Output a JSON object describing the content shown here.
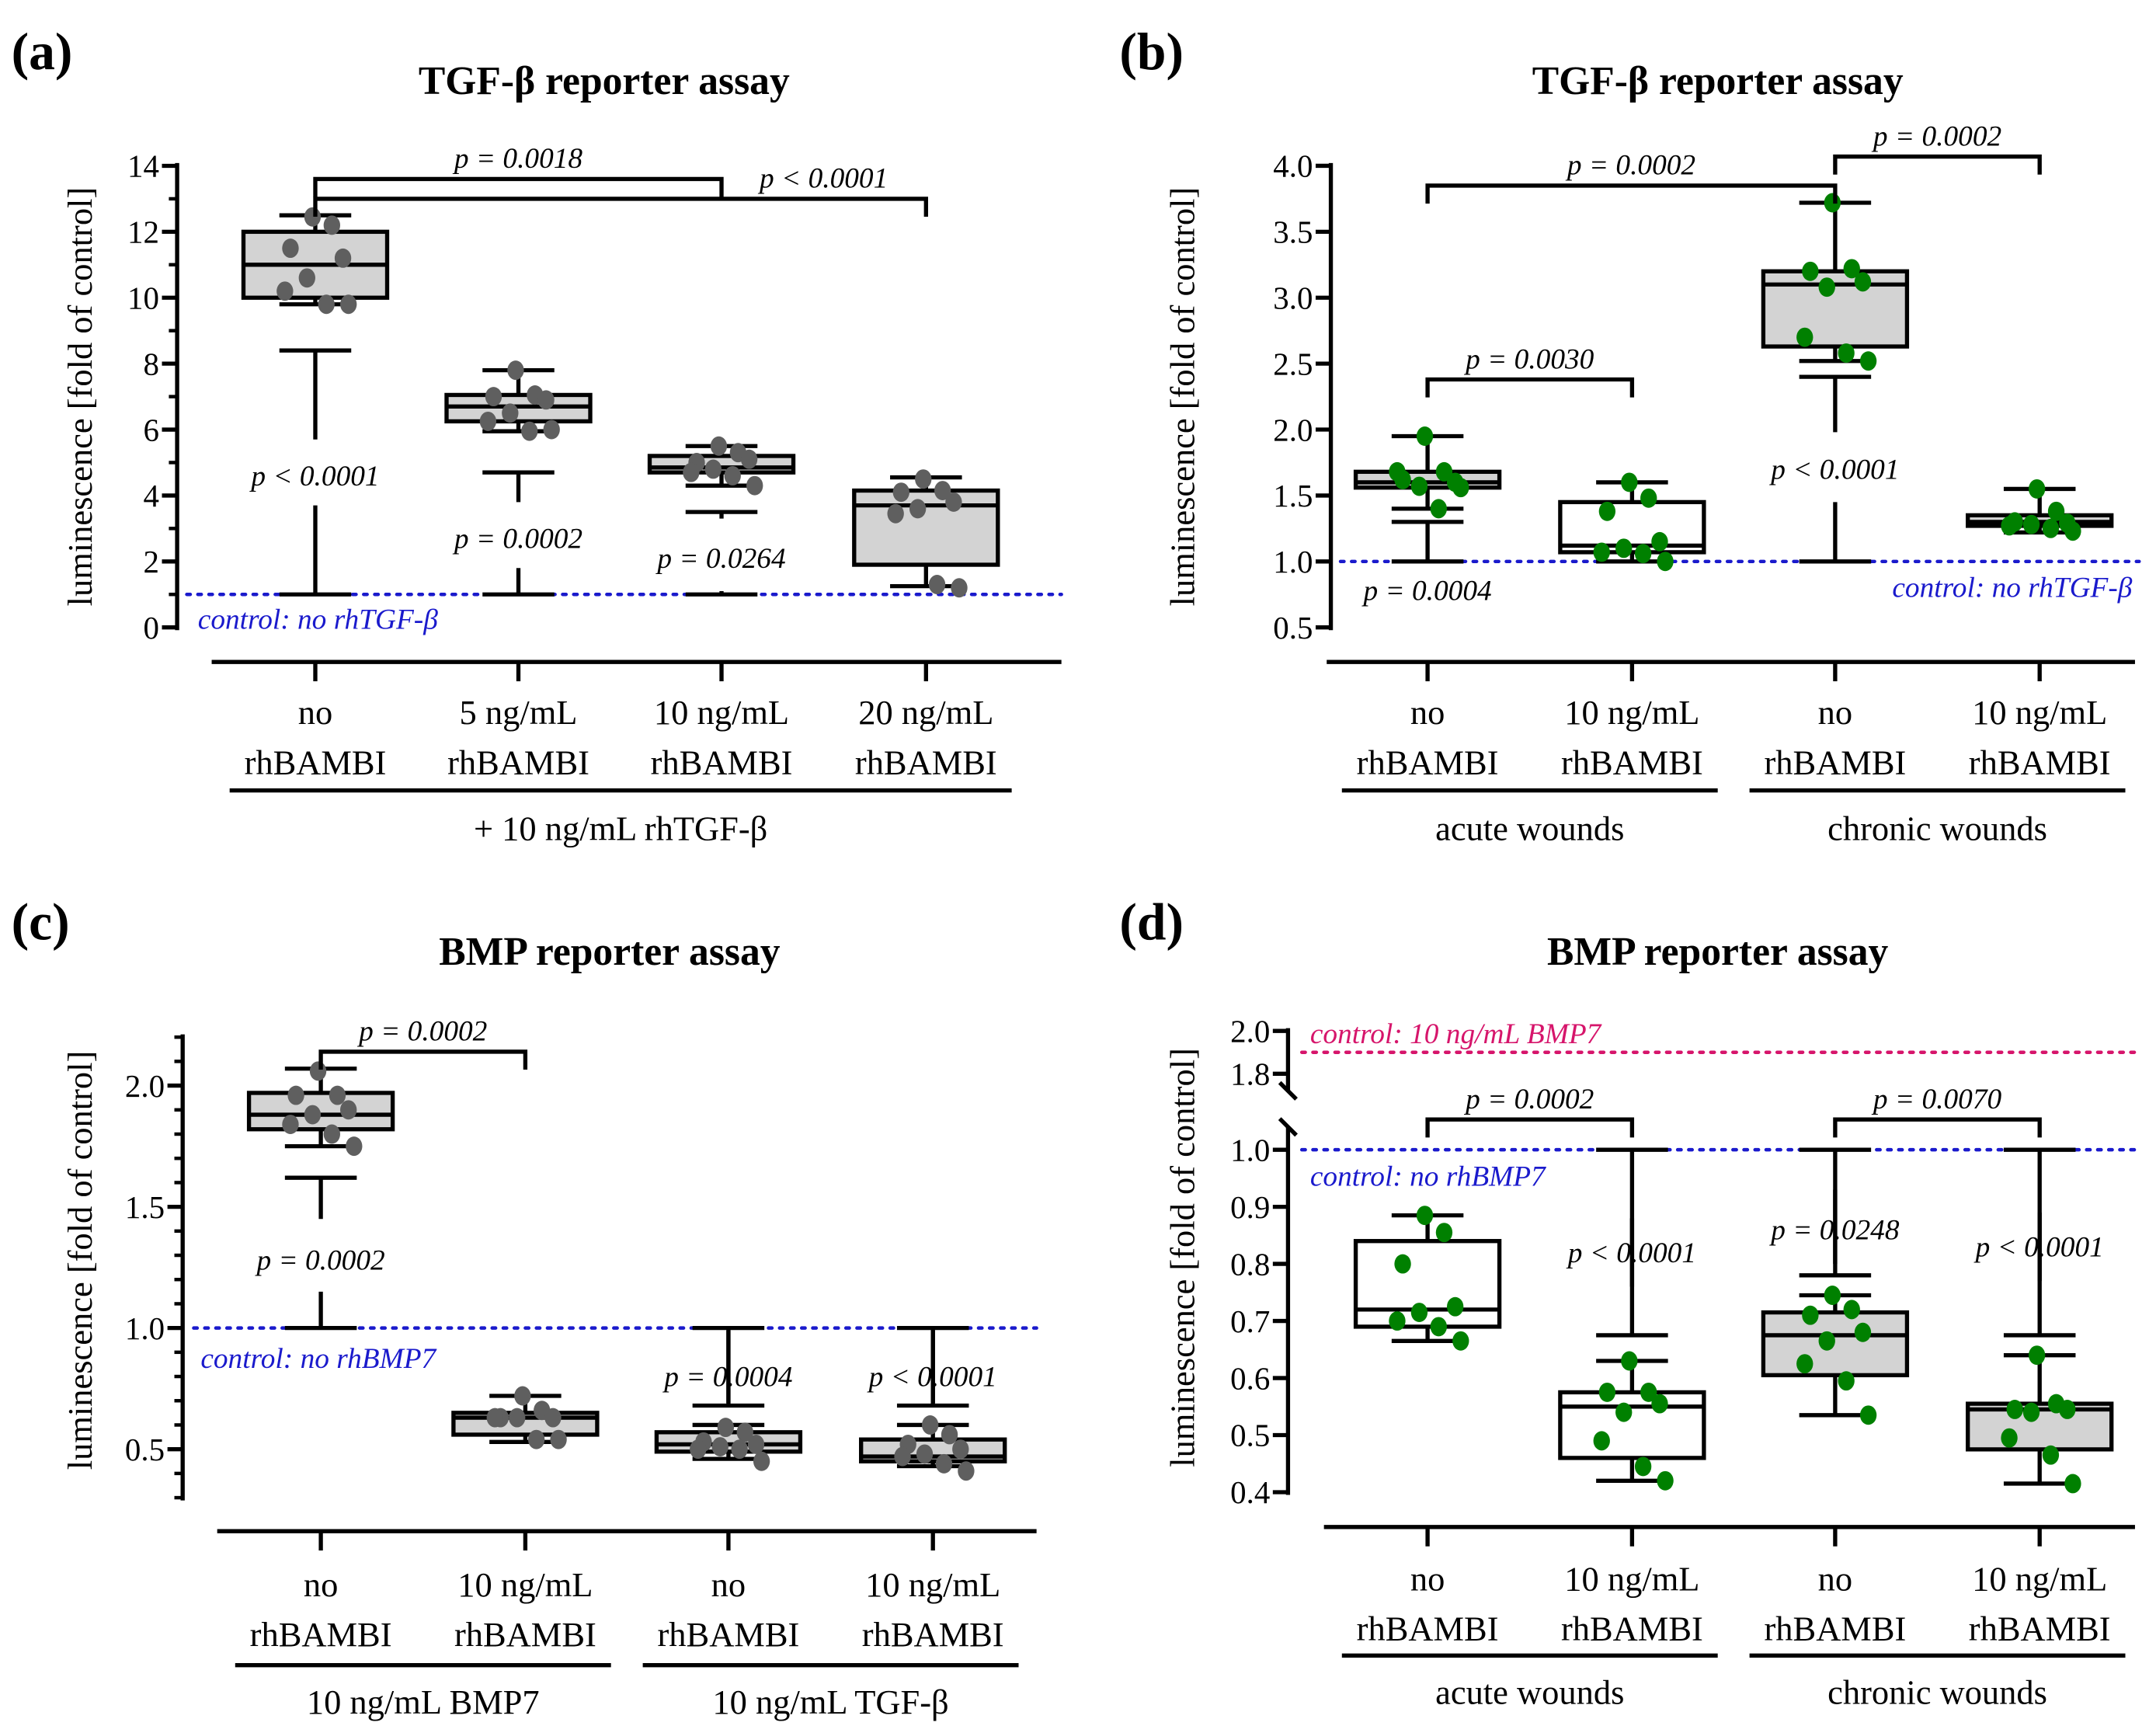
{
  "chart_data": [
    {
      "panel": "(a)",
      "type": "box",
      "title": "TGF-β reporter assay",
      "ylabel": "luminescence [fold of control]",
      "ylim": [
        0,
        14
      ],
      "y_ticks": [
        "0",
        "2",
        "4",
        "6",
        "8",
        "10",
        "12",
        "14"
      ],
      "y_tick_values": [
        0,
        2,
        4,
        6,
        8,
        10,
        12,
        14
      ],
      "minor_tick_step": 1,
      "categories": [
        [
          "no",
          "rhBAMBI"
        ],
        [
          "5 ng/mL",
          "rhBAMBI"
        ],
        [
          "10 ng/mL",
          "rhBAMBI"
        ],
        [
          "20 ng/mL",
          "rhBAMBI"
        ]
      ],
      "group_labels": [
        {
          "label": "+ 10 ng/mL rhTGF-β",
          "from": 0,
          "to": 3
        }
      ],
      "controls": [
        {
          "value": 1,
          "label": "control: no rhTGF-β",
          "color": "#1a1acc",
          "label_pos": "below-left"
        }
      ],
      "point_color": "#5f5f5f",
      "groups": [
        {
          "min": 9.8,
          "q1": 10.0,
          "median": 11.0,
          "q3": 12.0,
          "max": 12.5,
          "fill": "#d3d3d3",
          "points": [
            12.45,
            12.2,
            11.5,
            11.2,
            10.6,
            10.2,
            9.8,
            9.8
          ],
          "comp": {
            "to": 8.4,
            "label": "p < 0.0001",
            "label_at": 4.6,
            "gap": [
              3.7,
              5.7
            ]
          }
        },
        {
          "min": 5.95,
          "q1": 6.25,
          "median": 6.7,
          "q3": 7.05,
          "max": 7.8,
          "fill": "#d3d3d3",
          "points": [
            7.8,
            7.05,
            7.0,
            6.9,
            6.5,
            6.25,
            5.95,
            6.0
          ],
          "comp": {
            "to": 4.7,
            "label": "p = 0.0002",
            "label_at": 2.7,
            "gap": [
              1.8,
              3.8
            ]
          }
        },
        {
          "min": 4.3,
          "q1": 4.7,
          "median": 4.85,
          "q3": 5.2,
          "max": 5.5,
          "fill": "#d3d3d3",
          "points": [
            5.5,
            5.3,
            5.0,
            5.1,
            4.8,
            4.7,
            4.6,
            4.3
          ],
          "comp": {
            "to": 3.5,
            "label": "p = 0.0264",
            "label_at": 2.1,
            "gap": [
              1.1,
              3.3
            ]
          }
        },
        {
          "min": 1.25,
          "q1": 1.9,
          "median": 3.7,
          "q3": 4.15,
          "max": 4.55,
          "fill": "#d3d3d3",
          "points": [
            4.5,
            4.15,
            4.1,
            3.8,
            3.6,
            3.45,
            1.3,
            1.2
          ]
        }
      ],
      "brackets": [
        {
          "from": 0,
          "to": 2,
          "at": 13.6,
          "label": "p = 0.0018"
        },
        {
          "from": 0,
          "to": 3,
          "at": 13.0,
          "label": "p < 0.0001",
          "label_side": "right"
        }
      ]
    },
    {
      "panel": "(b)",
      "type": "box",
      "title": "TGF-β reporter assay",
      "ylabel": "luminescence [fold of control]",
      "ylim": [
        0.5,
        4.0
      ],
      "y_ticks": [
        "0.5",
        "1.0",
        "1.5",
        "2.0",
        "2.5",
        "3.0",
        "3.5",
        "4.0"
      ],
      "y_tick_values": [
        0.5,
        1.0,
        1.5,
        2.0,
        2.5,
        3.0,
        3.5,
        4.0
      ],
      "minor_tick_step": 0,
      "categories": [
        [
          "no",
          "rhBAMBI"
        ],
        [
          "10 ng/mL",
          "rhBAMBI"
        ],
        [
          "no",
          "rhBAMBI"
        ],
        [
          "10 ng/mL",
          "rhBAMBI"
        ]
      ],
      "group_labels": [
        {
          "label": "acute wounds",
          "from": 0,
          "to": 1
        },
        {
          "label": "chronic wounds",
          "from": 2,
          "to": 3
        }
      ],
      "controls": [
        {
          "value": 1.0,
          "label": "control: no rhTGF-β",
          "color": "#1a1acc",
          "label_pos": "below-right"
        }
      ],
      "point_color": "#008000",
      "groups": [
        {
          "min": 1.4,
          "q1": 1.56,
          "median": 1.6,
          "q3": 1.68,
          "max": 1.95,
          "fill": "#d3d3d3",
          "points": [
            1.95,
            1.68,
            1.62,
            1.6,
            1.57,
            1.68,
            1.4,
            1.56
          ],
          "comp": {
            "to": 1.3,
            "label": "p = 0.0004",
            "label_at": 0.78
          }
        },
        {
          "min": 1.0,
          "q1": 1.07,
          "median": 1.12,
          "q3": 1.45,
          "max": 1.6,
          "fill": "#ffffff",
          "points": [
            1.6,
            1.48,
            1.38,
            1.15,
            1.1,
            1.07,
            1.06,
            1.0
          ]
        },
        {
          "min": 2.52,
          "q1": 2.63,
          "median": 3.1,
          "q3": 3.2,
          "max": 3.72,
          "fill": "#d3d3d3",
          "points": [
            3.72,
            3.22,
            3.2,
            3.12,
            3.08,
            2.7,
            2.58,
            2.52
          ],
          "comp": {
            "to": 2.4,
            "label": "p < 0.0001",
            "label_at": 1.7,
            "gap": [
              1.45,
              1.98
            ]
          }
        },
        {
          "min": 1.22,
          "q1": 1.27,
          "median": 1.3,
          "q3": 1.35,
          "max": 1.55,
          "fill": "#d3d3d3",
          "points": [
            1.55,
            1.38,
            1.3,
            1.29,
            1.28,
            1.27,
            1.25,
            1.23
          ]
        }
      ],
      "brackets": [
        {
          "from": 0,
          "to": 2,
          "at": 3.85,
          "label": "p = 0.0002"
        },
        {
          "from": 0,
          "to": 1,
          "at": 2.38,
          "label": "p = 0.0030"
        },
        {
          "from": 2,
          "to": 3,
          "at": 4.07,
          "label": "p = 0.0002"
        }
      ]
    },
    {
      "panel": "(c)",
      "type": "box",
      "title": "BMP reporter assay",
      "ylabel": "luminescence [fold of control]",
      "ylim": [
        0.3,
        2.2
      ],
      "y_ticks": [
        "0.5",
        "1.0",
        "1.5",
        "2.0"
      ],
      "y_tick_values": [
        0.5,
        1.0,
        1.5,
        2.0
      ],
      "minor_tick_step": 0.1,
      "categories": [
        [
          "no",
          "rhBAMBI"
        ],
        [
          "10 ng/mL",
          "rhBAMBI"
        ],
        [
          "no",
          "rhBAMBI"
        ],
        [
          "10 ng/mL",
          "rhBAMBI"
        ]
      ],
      "group_labels": [
        {
          "label": "10 ng/mL BMP7",
          "from": 0,
          "to": 1
        },
        {
          "label": "10 ng/mL TGF-β",
          "from": 2,
          "to": 3
        }
      ],
      "controls": [
        {
          "value": 1.0,
          "label": "control: no rhBMP7",
          "color": "#1a1acc",
          "label_pos": "below-left"
        }
      ],
      "point_color": "#5f5f5f",
      "groups": [
        {
          "min": 1.75,
          "q1": 1.82,
          "median": 1.88,
          "q3": 1.97,
          "max": 2.07,
          "fill": "#d3d3d3",
          "points": [
            2.06,
            1.96,
            1.96,
            1.9,
            1.88,
            1.84,
            1.8,
            1.75
          ],
          "comp": {
            "to": 1.62,
            "label": "p = 0.0002",
            "label_at": 1.28,
            "gap": [
              1.15,
              1.45
            ]
          }
        },
        {
          "min": 0.53,
          "q1": 0.56,
          "median": 0.63,
          "q3": 0.65,
          "max": 0.72,
          "fill": "#d3d3d3",
          "points": [
            0.72,
            0.66,
            0.63,
            0.63,
            0.63,
            0.63,
            0.54,
            0.54
          ]
        },
        {
          "min": 0.46,
          "q1": 0.49,
          "median": 0.52,
          "q3": 0.57,
          "max": 0.6,
          "fill": "#d3d3d3",
          "points": [
            0.59,
            0.57,
            0.53,
            0.52,
            0.51,
            0.5,
            0.5,
            0.45
          ],
          "comp": {
            "to": 0.68,
            "label": "p = 0.0004",
            "label_at": 0.8,
            "gap": [
              0.69,
              0.99
            ]
          }
        },
        {
          "min": 0.43,
          "q1": 0.45,
          "median": 0.47,
          "q3": 0.54,
          "max": 0.6,
          "fill": "#d3d3d3",
          "points": [
            0.6,
            0.56,
            0.52,
            0.5,
            0.48,
            0.47,
            0.44,
            0.41
          ],
          "comp": {
            "to": 0.68,
            "label": "p < 0.0001",
            "label_at": 0.8,
            "gap": [
              0.69,
              0.99
            ]
          }
        }
      ],
      "brackets": [
        {
          "from": 0,
          "to": 1,
          "at": 2.14,
          "label": "p = 0.0002"
        }
      ]
    },
    {
      "panel": "(d)",
      "type": "box",
      "title": "BMP reporter assay",
      "ylabel": "luminescence [fold of control]",
      "ylim": [
        0.4,
        2.0
      ],
      "axis_break": [
        1.05,
        1.75
      ],
      "y_ticks": [
        "0.4",
        "0.5",
        "0.6",
        "0.7",
        "0.8",
        "0.9",
        "1.0",
        "1.8",
        "2.0"
      ],
      "y_tick_values": [
        0.4,
        0.5,
        0.6,
        0.7,
        0.8,
        0.9,
        1.0,
        1.8,
        2.0
      ],
      "minor_tick_step": 0,
      "categories": [
        [
          "no",
          "rhBAMBI"
        ],
        [
          "10 ng/mL",
          "rhBAMBI"
        ],
        [
          "no",
          "rhBAMBI"
        ],
        [
          "10 ng/mL",
          "rhBAMBI"
        ]
      ],
      "group_labels": [
        {
          "label": "acute wounds",
          "from": 0,
          "to": 1
        },
        {
          "label": "chronic wounds",
          "from": 2,
          "to": 3
        }
      ],
      "controls": [
        {
          "value": 1.9,
          "label": "control: 10 ng/mL BMP7",
          "color": "#d6156b",
          "label_pos": "above-left"
        },
        {
          "value": 1.0,
          "label": "control: no rhBMP7",
          "color": "#1a1acc",
          "label_pos": "below-left"
        }
      ],
      "point_color": "#008000",
      "groups": [
        {
          "min": 0.665,
          "q1": 0.69,
          "median": 0.72,
          "q3": 0.84,
          "max": 0.885,
          "fill": "#ffffff",
          "points": [
            0.885,
            0.855,
            0.8,
            0.725,
            0.715,
            0.7,
            0.69,
            0.665
          ]
        },
        {
          "min": 0.42,
          "q1": 0.46,
          "median": 0.55,
          "q3": 0.575,
          "max": 0.63,
          "fill": "#ffffff",
          "points": [
            0.63,
            0.575,
            0.575,
            0.555,
            0.54,
            0.49,
            0.445,
            0.42
          ],
          "comp": {
            "to": 0.675,
            "label": "p < 0.0001",
            "label_at": 0.82,
            "gap": [
              0.76,
              0.88
            ]
          }
        },
        {
          "min": 0.535,
          "q1": 0.605,
          "median": 0.675,
          "q3": 0.715,
          "max": 0.745,
          "fill": "#d3d3d3",
          "points": [
            0.745,
            0.72,
            0.71,
            0.68,
            0.665,
            0.625,
            0.595,
            0.535
          ],
          "comp": {
            "to": 0.78,
            "label": "p = 0.0248",
            "label_at": 0.86,
            "gap": [
              0.8,
              0.93
            ]
          }
        },
        {
          "min": 0.415,
          "q1": 0.475,
          "median": 0.545,
          "q3": 0.555,
          "max": 0.64,
          "fill": "#d3d3d3",
          "points": [
            0.64,
            0.555,
            0.545,
            0.545,
            0.54,
            0.495,
            0.465,
            0.415
          ],
          "comp": {
            "to": 0.675,
            "label": "p < 0.0001",
            "label_at": 0.83,
            "gap": [
              0.77,
              0.89
            ]
          }
        }
      ],
      "brackets": [
        {
          "from": 0,
          "to": 1,
          "at": 1.053,
          "label": "p = 0.0002"
        },
        {
          "from": 2,
          "to": 3,
          "at": 1.053,
          "label": "p = 0.0070"
        }
      ]
    }
  ]
}
